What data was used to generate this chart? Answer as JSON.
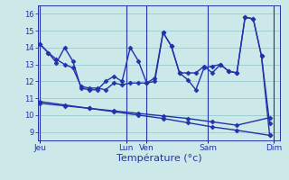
{
  "background_color": "#cce8e8",
  "grid_color": "#99cccc",
  "line_color": "#2233aa",
  "marker": "D",
  "marker_size": 2.5,
  "line_width": 1.0,
  "xlabel": "Température (°c)",
  "xlabel_color": "#2233aa",
  "xlabel_fontsize": 8,
  "yticks": [
    9,
    10,
    11,
    12,
    13,
    14,
    15,
    16
  ],
  "ylim": [
    8.5,
    16.5
  ],
  "xlim": [
    -0.3,
    29.3
  ],
  "day_labels": [
    "Jeu",
    "Lun",
    "Ven",
    "Sam",
    "Dim"
  ],
  "day_positions": [
    0.0,
    10.5,
    13.0,
    20.5,
    28.5
  ],
  "line1_x": [
    0,
    1,
    2,
    3,
    4,
    5,
    6,
    7,
    8,
    9,
    10,
    11,
    12,
    13,
    14,
    15,
    16,
    17,
    18,
    19,
    20,
    21,
    22,
    23,
    24,
    25,
    26,
    27,
    28
  ],
  "line1_y": [
    14.2,
    13.7,
    13.3,
    13.0,
    12.8,
    11.7,
    11.6,
    11.6,
    11.5,
    11.9,
    11.8,
    11.9,
    11.9,
    11.9,
    12.2,
    14.9,
    14.1,
    12.5,
    12.1,
    11.5,
    12.8,
    12.9,
    13.0,
    12.6,
    12.5,
    15.8,
    15.7,
    13.5,
    8.8
  ],
  "line2_x": [
    0,
    1,
    2,
    3,
    4,
    5,
    6,
    7,
    8,
    9,
    10,
    11,
    12,
    13,
    14,
    15,
    16,
    17,
    18,
    19,
    20,
    21,
    22,
    23,
    24,
    25,
    26,
    27,
    28
  ],
  "line2_y": [
    14.2,
    13.7,
    13.1,
    14.0,
    13.2,
    11.6,
    11.5,
    11.5,
    12.0,
    12.3,
    12.0,
    14.0,
    13.2,
    11.9,
    12.0,
    14.9,
    14.1,
    12.5,
    12.5,
    12.5,
    12.9,
    12.5,
    13.0,
    12.6,
    12.5,
    15.8,
    15.7,
    13.5,
    9.5
  ],
  "line3_x": [
    0,
    3,
    6,
    9,
    12,
    15,
    18,
    21,
    24,
    28
  ],
  "line3_y": [
    10.7,
    10.55,
    10.4,
    10.25,
    10.1,
    9.95,
    9.8,
    9.6,
    9.4,
    9.85
  ],
  "line4_x": [
    0,
    3,
    6,
    9,
    12,
    15,
    18,
    21,
    24,
    28
  ],
  "line4_y": [
    10.8,
    10.6,
    10.4,
    10.2,
    10.0,
    9.8,
    9.55,
    9.3,
    9.1,
    8.8
  ]
}
